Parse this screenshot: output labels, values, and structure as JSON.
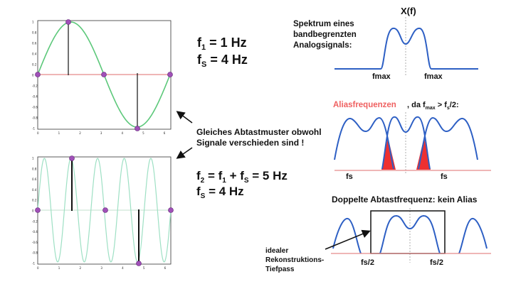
{
  "colors": {
    "sine": "#5cc87a",
    "sine_fast": "#9ee0c4",
    "axis": "#e58a8a",
    "sample": "#a050b8",
    "spectrum": "#2d5fc4",
    "alias": "#ee3030"
  },
  "left_top": {
    "f_label": "f",
    "f_sub": "1",
    "f_value": " = 1 Hz",
    "fs_label": "f",
    "fs_sub": "S",
    "fs_value": " = 4 Hz",
    "yticks": [
      "1",
      "0.8",
      "0.6",
      "0.4",
      "0.2",
      "0",
      "-0.2",
      "-0.4",
      "-0.6",
      "-0.8",
      "-1"
    ],
    "xticks": [
      "0",
      "1",
      "2",
      "3",
      "4",
      "5",
      "6"
    ]
  },
  "caption": {
    "line1": "Gleiches Abtastmuster obwohl",
    "line2": "Signale verschieden sind !"
  },
  "left_bottom": {
    "f2_text": "f",
    "f2_sub": "2",
    "f2_mid": " = f",
    "f2_sub1": "1",
    "f2_plus": " + f",
    "f2_subs": "S",
    "f2_value": " = 5 Hz",
    "fs_label": "f",
    "fs_sub": "S",
    "fs_value": " = 4 Hz",
    "yticks": [
      "1",
      "0.8",
      "0.6",
      "0.4",
      "0.2",
      "0",
      "-0.2",
      "-0.4",
      "-0.6",
      "-0.8",
      "-1"
    ],
    "xticks": [
      "0",
      "1",
      "2",
      "3",
      "4",
      "5",
      "6"
    ]
  },
  "right": {
    "xf_label": "X(f)",
    "top_title_1": "Spektrum eines",
    "top_title_2": "bandbegrenzten",
    "top_title_3": "Analogsignals:",
    "fmax_left": "fmax",
    "fmax_right": "fmax",
    "alias_word": "Aliasfrequenzen",
    "alias_rest_1": ", da f",
    "alias_sub_max": "max",
    "alias_rest_2": " > f",
    "alias_sub_s": "s",
    "alias_rest_3": "/2:",
    "fs_left": "fs",
    "fs_right": "fs",
    "double_title": "Doppelte Abtastfrequenz: kein Alias",
    "fs2_left": "fs/2",
    "fs2_right": "fs/2",
    "ideal_1": "idealer",
    "ideal_2": "Rekonstruktions-",
    "ideal_3": "Tiefpass"
  }
}
